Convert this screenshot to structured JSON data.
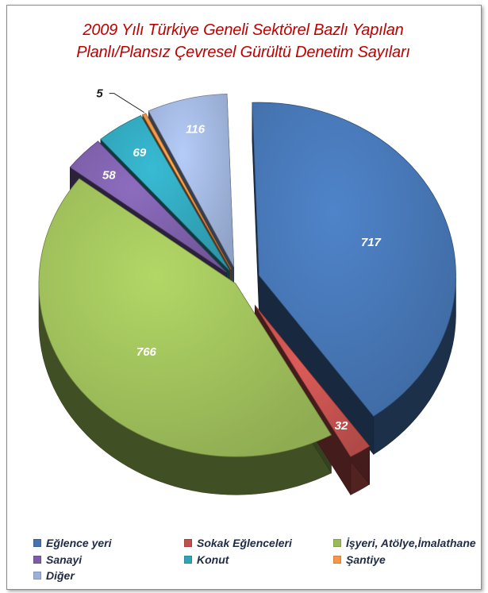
{
  "chart_data": {
    "type": "pie",
    "title_lines": [
      "2009 Yılı Türkiye Geneli Sektörel Bazlı Yapılan",
      "Planlı/Plansız Çevresel Gürültü Denetim Sayıları"
    ],
    "categories": [
      "Eğlence yeri",
      "Sokak Eğlenceleri",
      "İşyeri, Atölye,İmalathane",
      "Sanayi",
      "Konut",
      "Şantiye",
      "Diğer"
    ],
    "values": [
      717,
      32,
      766,
      58,
      69,
      5,
      116
    ],
    "data_labels": [
      "717",
      "32",
      "766",
      "58",
      "69",
      "5",
      "116"
    ],
    "colors": [
      "#4573b0",
      "#c0504d",
      "#9bbb59",
      "#7b5ea6",
      "#31a3b8",
      "#f79646",
      "#9db1d8"
    ],
    "style": "3d-exploded",
    "legend_position": "bottom"
  }
}
